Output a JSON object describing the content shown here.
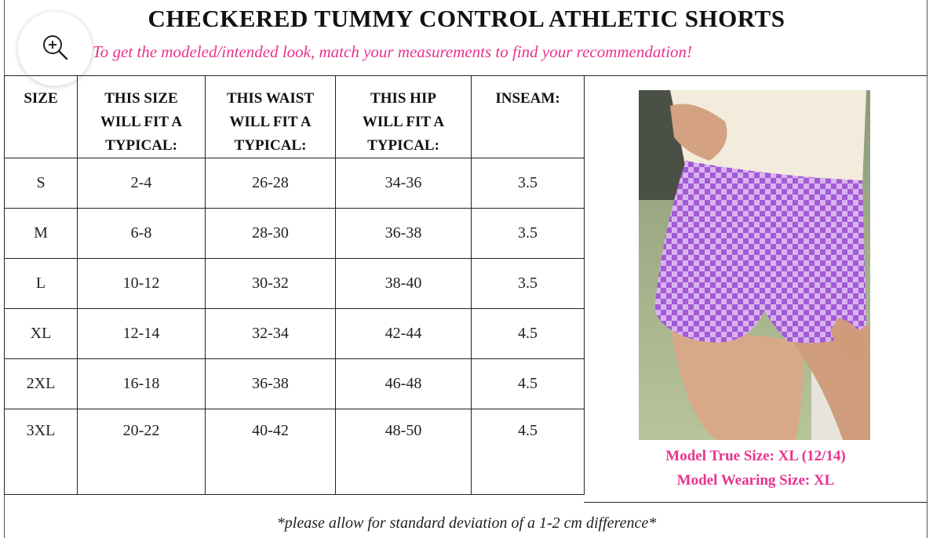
{
  "title": "CHECKERED TUMMY CONTROL ATHLETIC SHORTS",
  "subtitle": "To get the modeled/intended look, match your measurements to find your recommendation!",
  "zoom_icon": "zoom-in-icon",
  "colors": {
    "accent": "#e8338f",
    "shorts": "#a35ad6",
    "shorts_light": "#d9b3ef"
  },
  "table": {
    "headers": [
      [
        "SIZE"
      ],
      [
        "THIS SIZE",
        "WILL FIT A",
        "TYPICAL:"
      ],
      [
        "THIS WAIST",
        "WILL FIT A",
        "TYPICAL:"
      ],
      [
        "THIS HIP",
        "WILL FIT A",
        "TYPICAL:"
      ],
      [
        "INSEAM:"
      ]
    ],
    "rows": [
      [
        "S",
        "2-4",
        "26-28",
        "34-36",
        "3.5"
      ],
      [
        "M",
        "6-8",
        "28-30",
        "36-38",
        "3.5"
      ],
      [
        "L",
        "10-12",
        "30-32",
        "38-40",
        "3.5"
      ],
      [
        "XL",
        "12-14",
        "32-34",
        "42-44",
        "4.5"
      ],
      [
        "2XL",
        "16-18",
        "36-38",
        "46-48",
        "4.5"
      ],
      [
        "3XL",
        "20-22",
        "40-42",
        "48-50",
        "4.5"
      ]
    ]
  },
  "model": {
    "true_size": "Model True Size: XL (12/14)",
    "wearing_size": "Model Wearing Size: XL"
  },
  "footnote": "*please allow for standard deviation of a 1-2 cm difference*"
}
